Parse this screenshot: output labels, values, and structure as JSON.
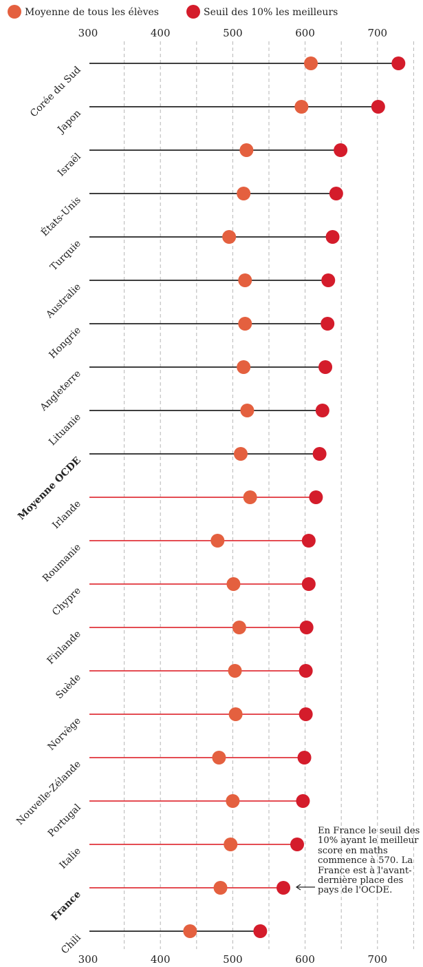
{
  "legend": {
    "mean_label": "Moyenne de tous les élèves",
    "top_label": "Seuil des 10% les meilleurs"
  },
  "annotation": "En France le seuil des 10% ayant le meilleur score en maths commence à 570. La France est à l'avant-dernière place des pays de l'OCDE.",
  "colors": {
    "mean": "#e4603f",
    "top": "#d41c2b",
    "line_above": "#222222",
    "line_below": "#e0323a",
    "highlight_text": "#d41c2b",
    "grid": "#b5b5b5"
  },
  "chart_data": {
    "type": "dumbbell",
    "title": "",
    "xlabel": "",
    "ylabel": "",
    "xlim": [
      300,
      760
    ],
    "x_ticks": [
      300,
      400,
      500,
      600,
      700
    ],
    "grid": "dashed vertical lines every 50",
    "legend_position": "top-left",
    "categories": [
      "Corée du Sud",
      "Japon",
      "Israël",
      "États-Unis",
      "Turquie",
      "Australie",
      "Hongrie",
      "Angleterre",
      "Lituanie",
      "Moyenne OCDE",
      "Irlande",
      "Roumanie",
      "Chypre",
      "Finlande",
      "Suède",
      "Norvège",
      "Nouvelle-Zélande",
      "Portugal",
      "Italie",
      "France",
      "Chili"
    ],
    "series": [
      {
        "name": "Moyenne de tous les élèves",
        "values": [
          608,
          595,
          519,
          515,
          495,
          517,
          517,
          515,
          520,
          511,
          524,
          479,
          501,
          509,
          503,
          504,
          481,
          500,
          497,
          483,
          441
        ]
      },
      {
        "name": "Seuil des 10% les meilleurs",
        "values": [
          729,
          701,
          649,
          643,
          638,
          632,
          631,
          628,
          624,
          620,
          615,
          605,
          605,
          602,
          601,
          601,
          599,
          597,
          589,
          570,
          538
        ]
      }
    ],
    "bold_category": "Moyenne OCDE",
    "highlight_category": "France",
    "line_color_change_after": "Moyenne OCDE",
    "line_color_last": "Chili"
  }
}
